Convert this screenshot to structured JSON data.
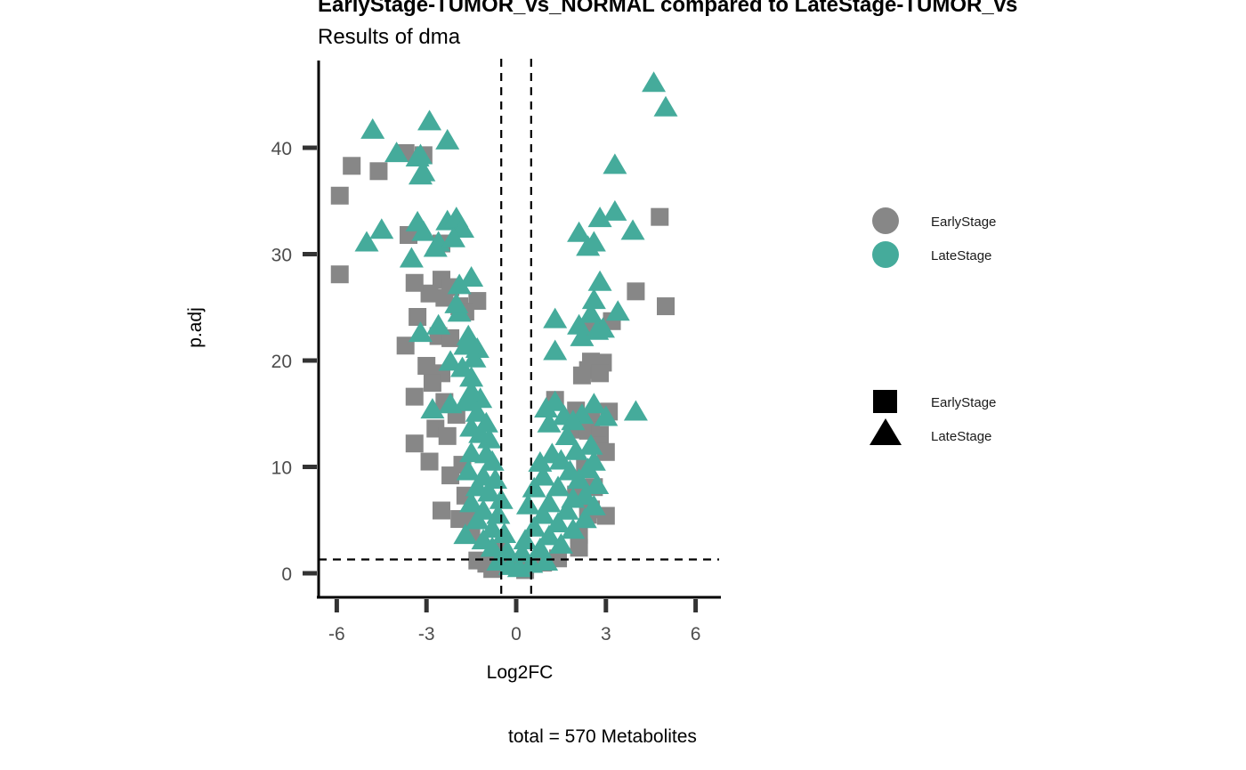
{
  "chart_data": {
    "type": "scatter",
    "title": "EarlyStage-TUMOR_vs_NORMAL compared to LateStage-TUMOR_vs_NORMAL",
    "title_visible": "EarlyStage-TUMOR_vs_NORMAL compared to LateStage-TUMOR_vs",
    "subtitle": "Results of dma",
    "xlabel": "Log2FC",
    "ylabel": "p.adj",
    "caption": "total = 570 Metabolites",
    "xlim": [
      -6.6,
      6.9
    ],
    "ylim": [
      -2.2,
      48.3
    ],
    "x_ticks": [
      -6,
      -3,
      0,
      3,
      6
    ],
    "x_tick_labels": [
      "-6",
      "-3",
      "0",
      "3",
      "6"
    ],
    "y_ticks": [
      0,
      10,
      20,
      30,
      40
    ],
    "y_tick_labels": [
      "0",
      "10",
      "20",
      "30",
      "40"
    ],
    "grid": false,
    "reference_lines": {
      "vertical": [
        -0.5,
        0.5
      ],
      "horizontal": [
        1.3
      ],
      "style": "dashed"
    },
    "colors": {
      "EarlyStage": "#878787",
      "LateStage": "#45ab9b"
    },
    "legend": {
      "placement": "right",
      "color_entries": [
        {
          "label": "EarlyStage",
          "color": "#878787",
          "shape": "circle"
        },
        {
          "label": "LateStage",
          "color": "#45ab9b",
          "shape": "circle"
        }
      ],
      "shape_entries": [
        {
          "label": "EarlyStage",
          "color": "#000000",
          "shape": "square"
        },
        {
          "label": "LateStage",
          "color": "#000000",
          "shape": "triangle"
        }
      ]
    },
    "series": [
      {
        "name": "EarlyStage",
        "shape": "square",
        "color": "#878787",
        "points": [
          [
            -5.9,
            35.5
          ],
          [
            -5.5,
            38.3
          ],
          [
            -4.6,
            37.8
          ],
          [
            -5.9,
            28.1
          ],
          [
            -3.1,
            39.3
          ],
          [
            -3.7,
            39.5
          ],
          [
            -3.6,
            31.8
          ],
          [
            -2.5,
            31.0
          ],
          [
            -2.9,
            26.3
          ],
          [
            -3.4,
            27.3
          ],
          [
            -2.5,
            27.6
          ],
          [
            -2.2,
            26.9
          ],
          [
            -2.4,
            25.9
          ],
          [
            -1.3,
            25.6
          ],
          [
            -1.9,
            25.1
          ],
          [
            -1.7,
            24.6
          ],
          [
            -3.3,
            24.1
          ],
          [
            -2.6,
            22.3
          ],
          [
            -2.2,
            22.1
          ],
          [
            -3.7,
            21.4
          ],
          [
            -3.0,
            19.5
          ],
          [
            -2.5,
            18.8
          ],
          [
            -2.8,
            17.9
          ],
          [
            -3.4,
            16.6
          ],
          [
            -2.4,
            16.1
          ],
          [
            -2.0,
            14.9
          ],
          [
            -2.7,
            13.6
          ],
          [
            -3.4,
            12.2
          ],
          [
            -2.3,
            12.9
          ],
          [
            -2.9,
            10.5
          ],
          [
            -1.8,
            10.2
          ],
          [
            -2.2,
            9.2
          ],
          [
            -1.7,
            7.3
          ],
          [
            -1.9,
            5.1
          ],
          [
            -2.5,
            5.9
          ],
          [
            -1.4,
            5.3
          ],
          [
            -1.5,
            3.6
          ],
          [
            -1.3,
            1.2
          ],
          [
            -1.0,
            0.9
          ],
          [
            -0.8,
            0.4
          ],
          [
            -0.6,
            2.1
          ],
          [
            -0.3,
            0.8
          ],
          [
            4.8,
            33.5
          ],
          [
            4.0,
            26.5
          ],
          [
            5.0,
            25.1
          ],
          [
            3.2,
            23.7
          ],
          [
            2.5,
            23.0
          ],
          [
            2.9,
            19.8
          ],
          [
            2.5,
            19.9
          ],
          [
            2.4,
            19.1
          ],
          [
            2.8,
            18.8
          ],
          [
            2.2,
            18.6
          ],
          [
            3.1,
            15.2
          ],
          [
            1.3,
            16.3
          ],
          [
            2.0,
            15.3
          ],
          [
            2.5,
            14.3
          ],
          [
            1.9,
            13.5
          ],
          [
            2.4,
            13.4
          ],
          [
            2.8,
            13.0
          ],
          [
            2.7,
            12.0
          ],
          [
            3.0,
            11.4
          ],
          [
            2.3,
            9.9
          ],
          [
            2.6,
            8.1
          ],
          [
            2.0,
            7.4
          ],
          [
            2.5,
            6.0
          ],
          [
            3.0,
            5.4
          ],
          [
            2.4,
            5.5
          ],
          [
            2.1,
            3.6
          ],
          [
            2.1,
            2.4
          ],
          [
            1.4,
            1.4
          ],
          [
            0.9,
            1.0
          ],
          [
            0.3,
            0.3
          ]
        ]
      },
      {
        "name": "LateStage",
        "shape": "triangle",
        "color": "#45ab9b",
        "points": [
          [
            -4.8,
            41.6
          ],
          [
            -2.9,
            42.4
          ],
          [
            -2.3,
            40.6
          ],
          [
            -4.0,
            39.4
          ],
          [
            -3.3,
            39.0
          ],
          [
            -3.1,
            37.6
          ],
          [
            -3.2,
            37.3
          ],
          [
            -3.2,
            39.2
          ],
          [
            -5.0,
            31.0
          ],
          [
            -4.5,
            32.2
          ],
          [
            -3.3,
            32.9
          ],
          [
            -3.1,
            32.0
          ],
          [
            -2.3,
            33.0
          ],
          [
            -2.0,
            33.3
          ],
          [
            -1.8,
            32.3
          ],
          [
            -2.6,
            31.0
          ],
          [
            -2.1,
            31.4
          ],
          [
            -2.7,
            30.5
          ],
          [
            -3.5,
            29.5
          ],
          [
            -1.9,
            27.0
          ],
          [
            -1.5,
            27.7
          ],
          [
            -1.9,
            24.4
          ],
          [
            -2.0,
            25.2
          ],
          [
            -1.6,
            22.2
          ],
          [
            -3.2,
            22.5
          ],
          [
            -2.6,
            23.2
          ],
          [
            -1.6,
            21.6
          ],
          [
            -1.7,
            21.3
          ],
          [
            -1.3,
            21.0
          ],
          [
            -2.2,
            19.8
          ],
          [
            -1.8,
            19.2
          ],
          [
            -1.4,
            20.1
          ],
          [
            -1.5,
            18.3
          ],
          [
            -1.5,
            17.0
          ],
          [
            -1.4,
            16.5
          ],
          [
            -1.2,
            16.3
          ],
          [
            -1.7,
            16.0
          ],
          [
            -2.2,
            15.8
          ],
          [
            -2.8,
            15.3
          ],
          [
            -1.3,
            15.0
          ],
          [
            -1.0,
            14.0
          ],
          [
            -1.5,
            13.6
          ],
          [
            -1.2,
            13.0
          ],
          [
            -0.9,
            12.5
          ],
          [
            -1.5,
            11.2
          ],
          [
            -1.0,
            11.1
          ],
          [
            -0.8,
            10.4
          ],
          [
            -1.6,
            9.5
          ],
          [
            -1.1,
            9.0
          ],
          [
            -0.7,
            8.7
          ],
          [
            -1.3,
            8.0
          ],
          [
            -0.9,
            7.5
          ],
          [
            -0.5,
            6.8
          ],
          [
            -1.5,
            6.5
          ],
          [
            -1.1,
            5.8
          ],
          [
            -0.6,
            5.4
          ],
          [
            -1.3,
            4.9
          ],
          [
            -0.8,
            4.1
          ],
          [
            -1.7,
            3.5
          ],
          [
            -1.1,
            3.0
          ],
          [
            -0.4,
            3.6
          ],
          [
            -0.8,
            2.3
          ],
          [
            -0.3,
            2.0
          ],
          [
            -0.6,
            1.0
          ],
          [
            -0.2,
            0.6
          ],
          [
            0.1,
            0.4
          ],
          [
            4.6,
            46.0
          ],
          [
            5.0,
            43.7
          ],
          [
            3.3,
            38.3
          ],
          [
            3.3,
            33.9
          ],
          [
            2.8,
            33.3
          ],
          [
            3.9,
            32.1
          ],
          [
            2.1,
            31.9
          ],
          [
            2.6,
            31.0
          ],
          [
            2.4,
            30.6
          ],
          [
            2.8,
            27.3
          ],
          [
            2.6,
            25.6
          ],
          [
            3.4,
            24.5
          ],
          [
            2.5,
            24.3
          ],
          [
            2.1,
            23.2
          ],
          [
            2.7,
            22.7
          ],
          [
            2.9,
            22.9
          ],
          [
            1.3,
            23.8
          ],
          [
            2.2,
            22.1
          ],
          [
            1.3,
            20.8
          ],
          [
            4.0,
            15.1
          ],
          [
            3.0,
            14.6
          ],
          [
            2.6,
            15.8
          ],
          [
            1.3,
            16.0
          ],
          [
            1.0,
            15.4
          ],
          [
            1.6,
            14.7
          ],
          [
            2.2,
            14.8
          ],
          [
            1.9,
            14.2
          ],
          [
            1.1,
            14.0
          ],
          [
            1.7,
            12.8
          ],
          [
            2.5,
            11.9
          ],
          [
            2.0,
            11.4
          ],
          [
            1.2,
            11.1
          ],
          [
            1.5,
            10.5
          ],
          [
            0.8,
            10.3
          ],
          [
            2.6,
            10.4
          ],
          [
            2.4,
            9.7
          ],
          [
            1.8,
            9.5
          ],
          [
            0.9,
            9.0
          ],
          [
            2.1,
            8.7
          ],
          [
            2.7,
            8.2
          ],
          [
            1.4,
            8.0
          ],
          [
            0.6,
            7.9
          ],
          [
            2.3,
            7.2
          ],
          [
            1.9,
            6.9
          ],
          [
            1.1,
            6.5
          ],
          [
            0.4,
            6.3
          ],
          [
            2.6,
            6.2
          ],
          [
            1.7,
            5.8
          ],
          [
            0.9,
            5.4
          ],
          [
            2.3,
            5.0
          ],
          [
            1.4,
            4.6
          ],
          [
            0.6,
            4.2
          ],
          [
            1.9,
            4.0
          ],
          [
            1.1,
            3.4
          ],
          [
            0.3,
            3.0
          ],
          [
            1.5,
            2.6
          ],
          [
            0.8,
            2.2
          ],
          [
            0.2,
            1.8
          ],
          [
            1.0,
            1.0
          ],
          [
            0.5,
            0.8
          ]
        ]
      }
    ]
  }
}
